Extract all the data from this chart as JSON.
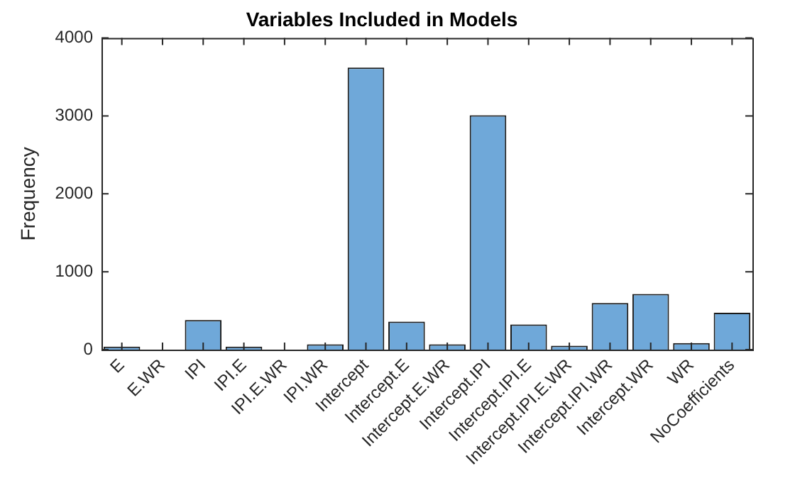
{
  "chart_data": {
    "type": "bar",
    "title": "Variables Included in Models",
    "ylabel": "Frequency",
    "categories": [
      "E",
      "E.WR",
      "IPI",
      "IPI.E",
      "IPI.E.WR",
      "IPI.WR",
      "Intercept",
      "Intercept.E",
      "Intercept.E.WR",
      "Intercept.IPI",
      "Intercept.IPI.E",
      "Intercept.IPI.E.WR",
      "Intercept.IPI.WR",
      "Intercept.WR",
      "WR",
      "NoCoefficients"
    ],
    "values": [
      40,
      0,
      380,
      40,
      0,
      70,
      3620,
      360,
      70,
      3010,
      325,
      50,
      600,
      715,
      85,
      475
    ],
    "color": "#6fa8d9",
    "ylim": [
      0,
      4000
    ],
    "yticks": [
      0,
      1000,
      2000,
      3000,
      4000
    ],
    "grid": false,
    "legend": false
  }
}
